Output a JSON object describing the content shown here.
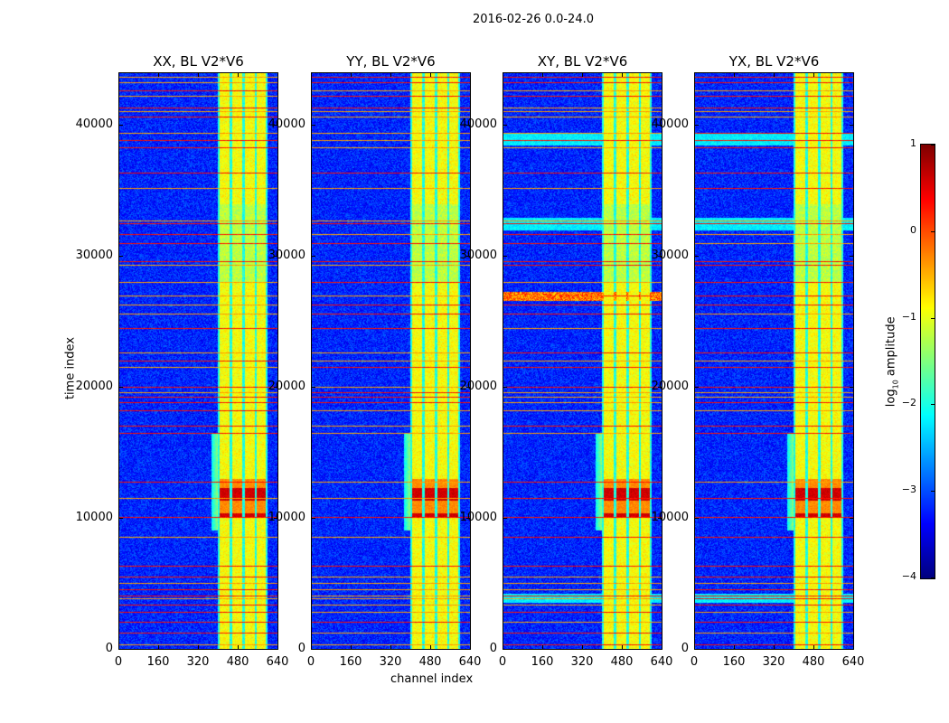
{
  "suptitle": "2016-02-26 0.0-24.0",
  "chart_data": {
    "type": "heatmap",
    "panels": [
      {
        "title": "XX, BL V2*V6"
      },
      {
        "title": "YY, BL V2*V6"
      },
      {
        "title": "XY, BL V2*V6"
      },
      {
        "title": "YX, BL V2*V6"
      }
    ],
    "xlabel": "channel index",
    "ylabel": "time index",
    "xlim": [
      0,
      640
    ],
    "ylim": [
      0,
      44000
    ],
    "xticks": [
      "0",
      "160",
      "320",
      "480",
      "640"
    ],
    "xtick_values": [
      0,
      160,
      320,
      480,
      640
    ],
    "yticks": [
      "0",
      "10000",
      "20000",
      "30000",
      "40000"
    ],
    "ytick_values": [
      0,
      10000,
      20000,
      30000,
      40000
    ],
    "colormap": "jet",
    "clim": [
      -4,
      1
    ],
    "colorbar": {
      "label_main": "log",
      "label_sub": "10",
      "label_rest": " amplitude",
      "ticks": [
        "1",
        "0",
        "−1",
        "−2",
        "−3",
        "−4"
      ],
      "tick_values": [
        1,
        0,
        -1,
        -2,
        -3,
        -4
      ]
    },
    "background_level": -3.2,
    "bright_channel_bands": [
      [
        405,
        445
      ],
      [
        455,
        495
      ],
      [
        505,
        545
      ],
      [
        555,
        592
      ]
    ],
    "bright_band_level": -0.9,
    "strong_emission_time_range": [
      10000,
      13000
    ],
    "rfi_time_rows": [
      43700,
      43300,
      42700,
      42300,
      41400,
      41100,
      40700,
      39400,
      38900,
      38300,
      36400,
      35200,
      32700,
      32500,
      31700,
      31000,
      29600,
      29300,
      28000,
      27000,
      26300,
      25600,
      24500,
      22600,
      22000,
      21500,
      20000,
      19600,
      19200,
      18800,
      18200,
      17000,
      16500,
      12700,
      11500,
      10000,
      8500,
      6300,
      5500,
      5000,
      4500,
      4000,
      3800,
      3300,
      2800,
      2000,
      1200,
      300
    ]
  }
}
